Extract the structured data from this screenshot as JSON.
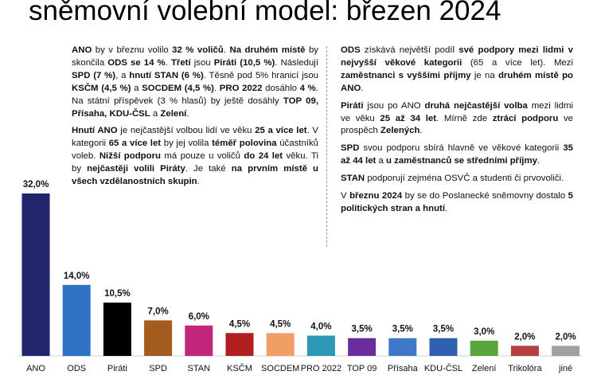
{
  "title": "sněmovní volební model: březen 2024",
  "chart_data": {
    "type": "bar",
    "categories": [
      "ANO",
      "ODS",
      "Piráti",
      "SPD",
      "STAN",
      "KSČM",
      "SOCDEM",
      "PRO 2022",
      "TOP 09",
      "Přísaha",
      "KDU-ČSL",
      "Zelení",
      "Trikolóra",
      "jiné"
    ],
    "values": [
      32.0,
      14.0,
      10.5,
      7.0,
      6.0,
      4.5,
      4.5,
      4.0,
      3.5,
      3.5,
      3.5,
      3.0,
      2.0,
      2.0
    ],
    "value_labels": [
      "32,0%",
      "14,0%",
      "10,5%",
      "7,0%",
      "6,0%",
      "4,5%",
      "4,5%",
      "4,0%",
      "3,5%",
      "3,5%",
      "3,5%",
      "3,0%",
      "2,0%",
      "2,0%"
    ],
    "colors": [
      "#21256b",
      "#2e72c6",
      "#000000",
      "#a35b1e",
      "#c2267a",
      "#b21e1e",
      "#f09e66",
      "#2c97b6",
      "#6b2d9e",
      "#3f78c8",
      "#2f5fb0",
      "#5aa63e",
      "#b3403f",
      "#a0a0a0"
    ],
    "ylim": [
      0,
      32
    ],
    "xlabel": "",
    "ylabel": ""
  },
  "text_left": {
    "p1": [
      {
        "t": "ANO",
        "b": true
      },
      {
        "t": " by v březnu volilo "
      },
      {
        "t": "32 % voličů",
        "b": true
      },
      {
        "t": ". "
      },
      {
        "t": "Na druhém místě",
        "b": true
      },
      {
        "t": " by skončila "
      },
      {
        "t": "ODS se 14 %",
        "b": true
      },
      {
        "t": ". "
      },
      {
        "t": "Třetí",
        "b": true
      },
      {
        "t": " jsou "
      },
      {
        "t": "Piráti (10,5 %)",
        "b": true
      },
      {
        "t": ". Následují "
      },
      {
        "t": "SPD (7 %)",
        "b": true
      },
      {
        "t": ", a "
      },
      {
        "t": "hnutí STAN (6 %)",
        "b": true
      },
      {
        "t": ". Těsně pod 5% hranicí jsou "
      },
      {
        "t": "KSČM (4,5 %)",
        "b": true
      },
      {
        "t": " a "
      },
      {
        "t": "SOCDEM (4,5 %)",
        "b": true
      },
      {
        "t": ". "
      },
      {
        "t": "PRO 2022",
        "b": true
      },
      {
        "t": " dosáhlo "
      },
      {
        "t": "4 %",
        "b": true
      },
      {
        "t": ". Na státní příspěvek (3 % hlasů) by ještě dosáhly "
      },
      {
        "t": "TOP 09, Přísaha, KDU-ČSL",
        "b": true
      },
      {
        "t": " a "
      },
      {
        "t": "Zelení",
        "b": true
      },
      {
        "t": "."
      }
    ],
    "p2": [
      {
        "t": "Hnutí ANO",
        "b": true
      },
      {
        "t": " je nejčastější volbou lidí ve věku "
      },
      {
        "t": "25 a více let",
        "b": true
      },
      {
        "t": ". V kategorii "
      },
      {
        "t": "65 a více let",
        "b": true
      },
      {
        "t": " by jej volila "
      },
      {
        "t": "téměř polovina",
        "b": true
      },
      {
        "t": " účastníků voleb. "
      },
      {
        "t": "Nižší podporu",
        "b": true
      },
      {
        "t": " má pouze u voličů "
      },
      {
        "t": "do 24 let",
        "b": true
      },
      {
        "t": " věku. Ti by "
      },
      {
        "t": "nejčastěji volili Piráty",
        "b": true
      },
      {
        "t": ". Je také "
      },
      {
        "t": "na prvním místě u všech vzdělanostních skupin",
        "b": true
      },
      {
        "t": "."
      }
    ]
  },
  "text_right": {
    "p1": [
      {
        "t": "ODS",
        "b": true
      },
      {
        "t": " získává největší podíl "
      },
      {
        "t": "své podpory mezi lidmi v nejvyšší věkové kategorii",
        "b": true
      },
      {
        "t": " (65 a více let). Mezi "
      },
      {
        "t": "zaměstnanci s vyššími příjmy",
        "b": true
      },
      {
        "t": " je na "
      },
      {
        "t": "druhém místě po ANO",
        "b": true
      },
      {
        "t": "."
      }
    ],
    "p2": [
      {
        "t": "Piráti",
        "b": true
      },
      {
        "t": " jsou po ANO "
      },
      {
        "t": "druhá nejčastější volba",
        "b": true
      },
      {
        "t": " mezi lidmi ve věku "
      },
      {
        "t": "25 až 34 let",
        "b": true
      },
      {
        "t": ". Mírně zde "
      },
      {
        "t": "ztrácí podporu",
        "b": true
      },
      {
        "t": " ve prospěch "
      },
      {
        "t": "Zelených",
        "b": true
      },
      {
        "t": "."
      }
    ],
    "p3": [
      {
        "t": "SPD",
        "b": true
      },
      {
        "t": " svou podporu sbírá hlavně ve věkové kategorii "
      },
      {
        "t": "35 až 44 let",
        "b": true
      },
      {
        "t": " a "
      },
      {
        "t": "u zaměstnanců se středními příjmy",
        "b": true
      },
      {
        "t": "."
      }
    ],
    "p4": [
      {
        "t": "STAN",
        "b": true
      },
      {
        "t": " podporují zejména OSVČ a studenti či prvovoliči."
      }
    ],
    "p5": [
      {
        "t": "V "
      },
      {
        "t": "březnu 2024",
        "b": true
      },
      {
        "t": " by se do Poslanecké sněmovny dostalo "
      },
      {
        "t": "5 politických stran a hnutí",
        "b": true
      },
      {
        "t": "."
      }
    ]
  }
}
